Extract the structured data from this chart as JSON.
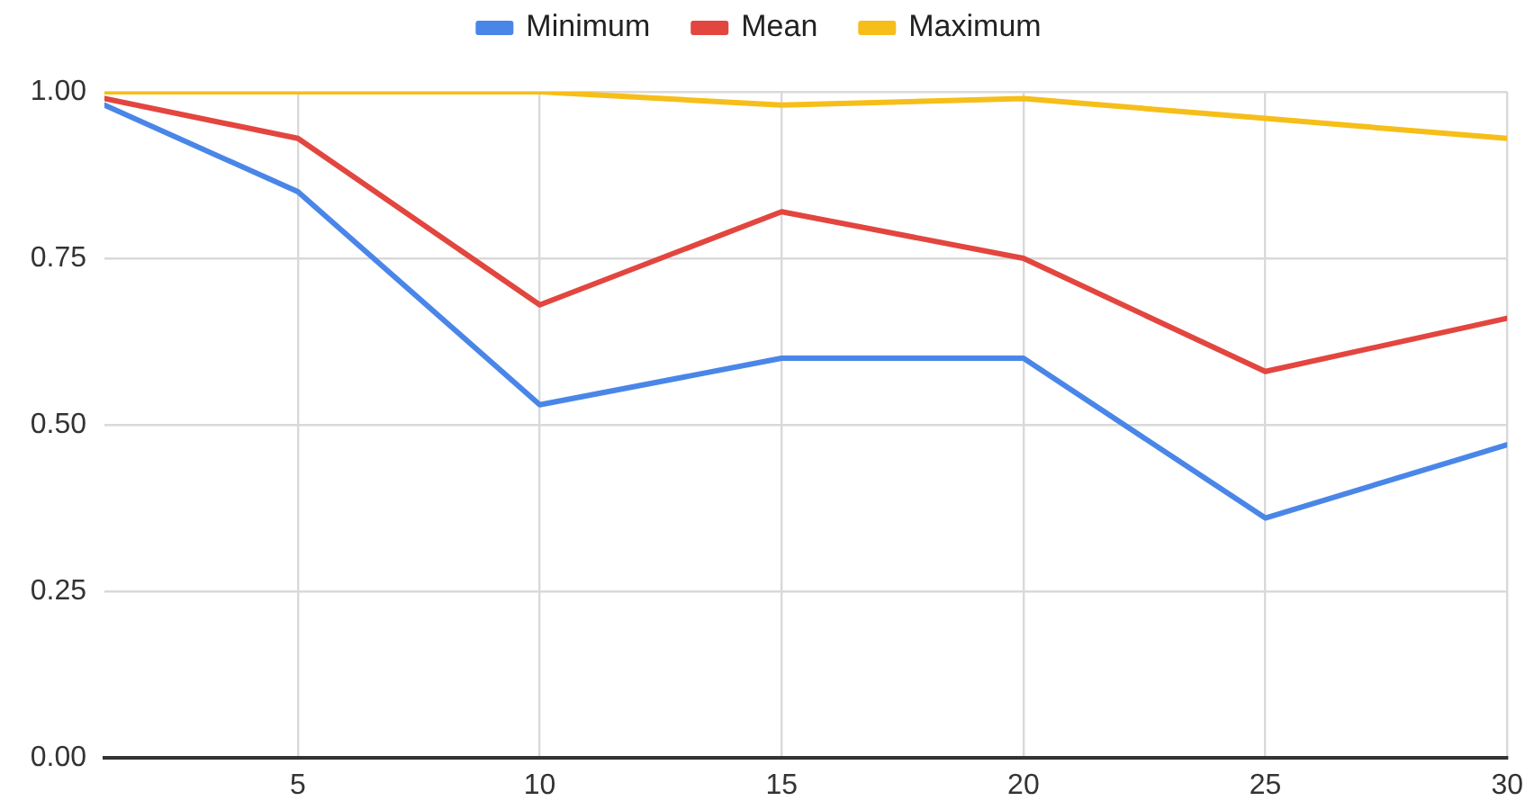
{
  "chart_data": {
    "type": "line",
    "x": [
      1,
      5,
      10,
      15,
      20,
      25,
      30
    ],
    "series": [
      {
        "name": "Minimum",
        "color": "#4a86e8",
        "values": [
          0.98,
          0.85,
          0.53,
          0.6,
          0.6,
          0.36,
          0.47
        ]
      },
      {
        "name": "Mean",
        "color": "#e2463f",
        "values": [
          0.99,
          0.93,
          0.68,
          0.82,
          0.75,
          0.58,
          0.66
        ]
      },
      {
        "name": "Maximum",
        "color": "#f6be19",
        "values": [
          1.0,
          1.0,
          1.0,
          0.98,
          0.99,
          0.96,
          0.93
        ]
      }
    ],
    "xlim": [
      1,
      30
    ],
    "xticks": [
      5,
      10,
      15,
      20,
      25,
      30
    ],
    "ylim": [
      0,
      1
    ],
    "yticks": [
      {
        "value": 0,
        "label": "0.00"
      },
      {
        "value": 0.25,
        "label": "0.25"
      },
      {
        "value": 0.5,
        "label": "0.50"
      },
      {
        "value": 0.75,
        "label": "0.75"
      },
      {
        "value": 1,
        "label": "1.00"
      }
    ],
    "grid": true,
    "legend": "top",
    "marker": "none",
    "line_style": "solid"
  }
}
